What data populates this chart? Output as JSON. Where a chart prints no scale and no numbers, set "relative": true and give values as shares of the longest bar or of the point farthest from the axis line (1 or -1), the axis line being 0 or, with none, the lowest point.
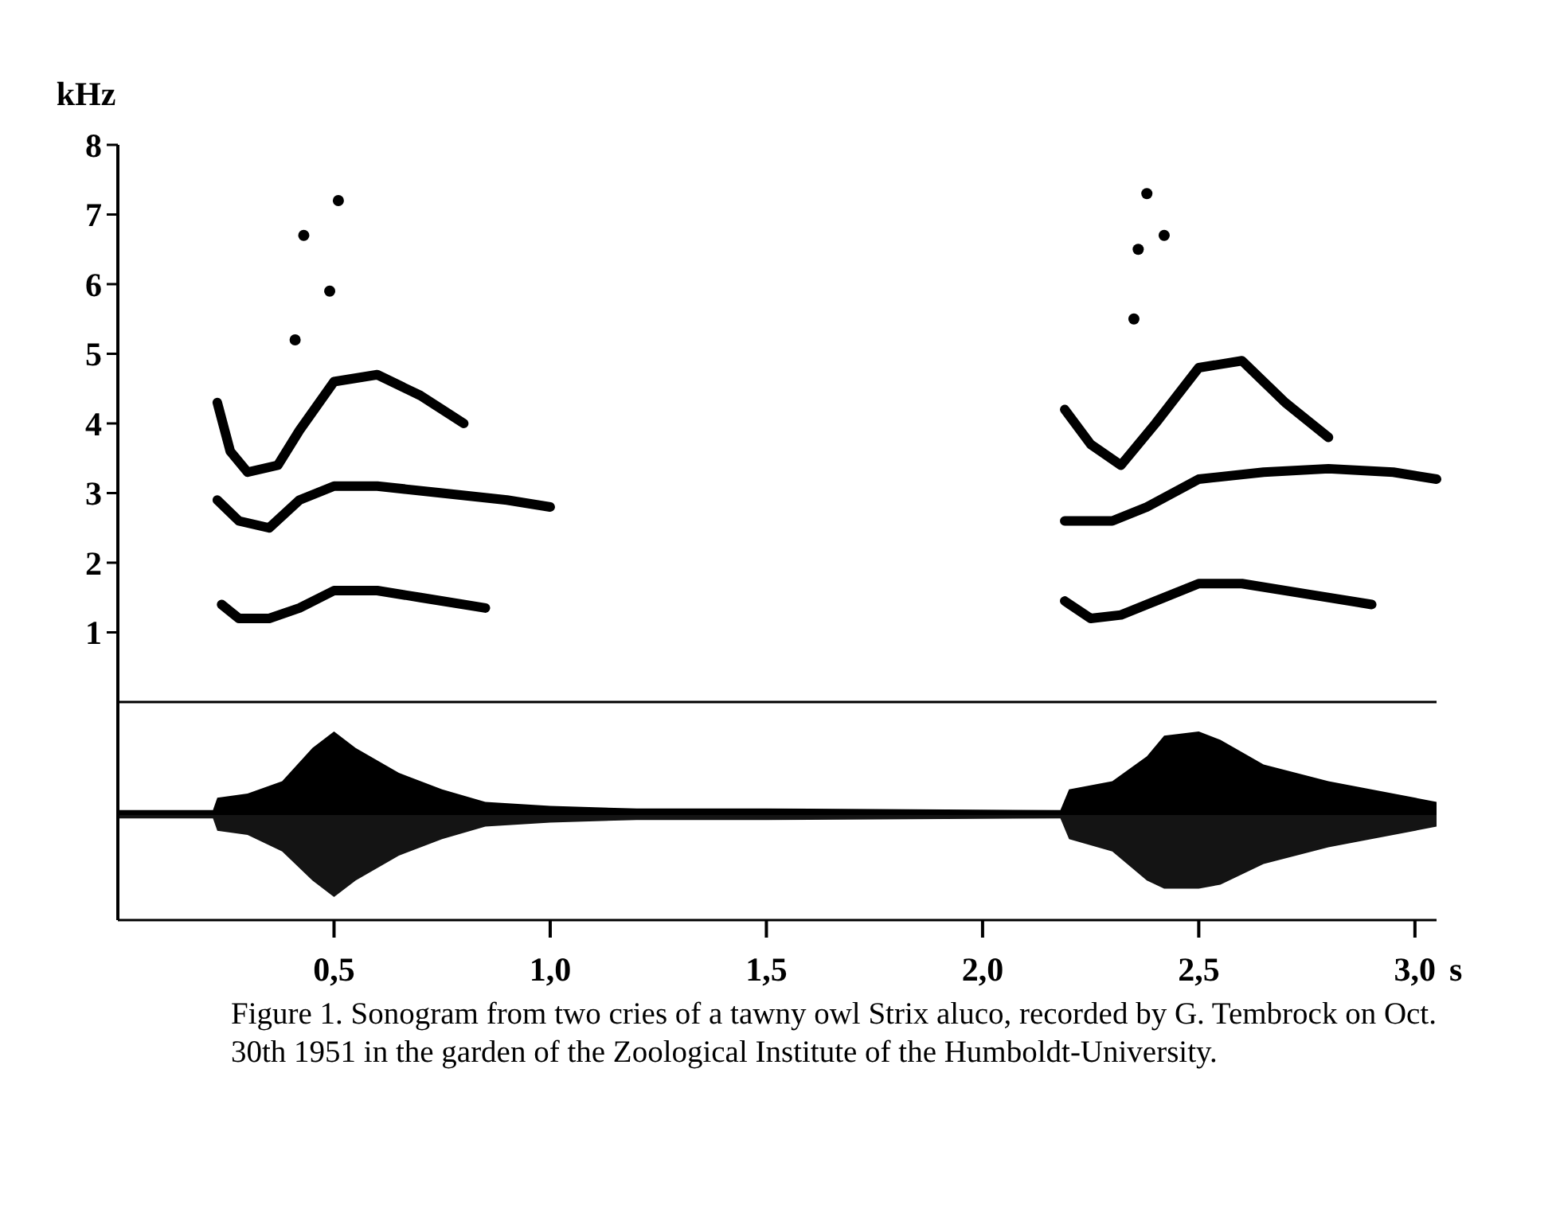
{
  "chart_data": [
    {
      "type": "line",
      "ylabel": "kHz",
      "xlim": [
        0,
        3.05
      ],
      "ylim": [
        0,
        8
      ],
      "yticks": [
        1,
        2,
        3,
        4,
        5,
        6,
        7,
        8
      ],
      "tick_labels": "y",
      "grid": false,
      "line_style": "solid",
      "series": [
        {
          "color": "#000000",
          "x": [
            0.24,
            0.28,
            0.35,
            0.42,
            0.5,
            0.6,
            0.7,
            0.85
          ],
          "values": [
            1.4,
            1.2,
            1.2,
            1.35,
            1.6,
            1.6,
            1.5,
            1.35
          ]
        },
        {
          "color": "#000000",
          "x": [
            0.23,
            0.28,
            0.35,
            0.42,
            0.5,
            0.6,
            0.75,
            0.9,
            1.0
          ],
          "values": [
            2.9,
            2.6,
            2.5,
            2.9,
            3.1,
            3.1,
            3.0,
            2.9,
            2.8
          ]
        },
        {
          "color": "#000000",
          "x": [
            0.23,
            0.26,
            0.3,
            0.37,
            0.42,
            0.5,
            0.6,
            0.7,
            0.8
          ],
          "values": [
            4.3,
            3.6,
            3.3,
            3.4,
            3.9,
            4.6,
            4.7,
            4.4,
            4.0
          ]
        },
        {
          "type": "scatter",
          "color": "#000000",
          "x": [
            0.41,
            0.43,
            0.51,
            0.49
          ],
          "values": [
            5.2,
            6.7,
            7.2,
            5.9
          ]
        },
        {
          "color": "#000000",
          "x": [
            2.19,
            2.25,
            2.32,
            2.4,
            2.5,
            2.6,
            2.75,
            2.9
          ],
          "values": [
            1.45,
            1.2,
            1.25,
            1.45,
            1.7,
            1.7,
            1.55,
            1.4
          ]
        },
        {
          "color": "#000000",
          "x": [
            2.19,
            2.3,
            2.38,
            2.5,
            2.65,
            2.8,
            2.95,
            3.05
          ],
          "values": [
            2.6,
            2.6,
            2.8,
            3.2,
            3.3,
            3.35,
            3.3,
            3.2
          ]
        },
        {
          "color": "#000000",
          "x": [
            2.19,
            2.25,
            2.32,
            2.4,
            2.5,
            2.6,
            2.7,
            2.8
          ],
          "values": [
            4.2,
            3.7,
            3.4,
            4.0,
            4.8,
            4.9,
            4.3,
            3.8
          ]
        },
        {
          "type": "scatter",
          "color": "#000000",
          "x": [
            2.36,
            2.38,
            2.42,
            2.35
          ],
          "values": [
            6.5,
            7.3,
            6.7,
            5.5
          ]
        }
      ]
    },
    {
      "type": "area",
      "relative": true,
      "xlabel": "s",
      "xlim": [
        0,
        3.05
      ],
      "xticks": [
        {
          "value": 0.5,
          "label": "0,5"
        },
        {
          "value": 1.0,
          "label": "1,0"
        },
        {
          "value": 1.5,
          "label": "1,5"
        },
        {
          "value": 2.0,
          "label": "2,0"
        },
        {
          "value": 2.5,
          "label": "2,5"
        },
        {
          "value": 3.0,
          "label": "3,0"
        }
      ],
      "tick_labels": "x",
      "grid": false,
      "x": [
        0,
        0.22,
        0.23,
        0.3,
        0.38,
        0.45,
        0.5,
        0.55,
        0.65,
        0.75,
        0.85,
        1.0,
        1.2,
        1.5,
        2.18,
        2.2,
        2.3,
        2.38,
        2.42,
        2.5,
        2.55,
        2.65,
        2.8,
        2.95,
        3.05
      ],
      "series": [
        {
          "color": "#000000",
          "values": [
            0.05,
            0.05,
            0.2,
            0.25,
            0.4,
            0.8,
            1.0,
            0.8,
            0.5,
            0.3,
            0.15,
            0.1,
            0.07,
            0.07,
            0.05,
            0.3,
            0.4,
            0.7,
            0.95,
            1.0,
            0.9,
            0.6,
            0.4,
            0.25,
            0.15
          ]
        },
        {
          "color": "#141414",
          "values": [
            -0.05,
            -0.05,
            -0.2,
            -0.25,
            -0.45,
            -0.8,
            -1.0,
            -0.8,
            -0.5,
            -0.3,
            -0.15,
            -0.1,
            -0.07,
            -0.07,
            -0.05,
            -0.3,
            -0.45,
            -0.8,
            -0.9,
            -0.9,
            -0.85,
            -0.6,
            -0.4,
            -0.25,
            -0.15
          ]
        }
      ],
      "annotations": [
        "Figure 1. Sonogram from two cries of a tawny owl Strix aluco, recorded by G. Tembrock on Oct. 30th 1951 in the garden of the Zoological Institute of the Humboldt-University."
      ]
    }
  ]
}
